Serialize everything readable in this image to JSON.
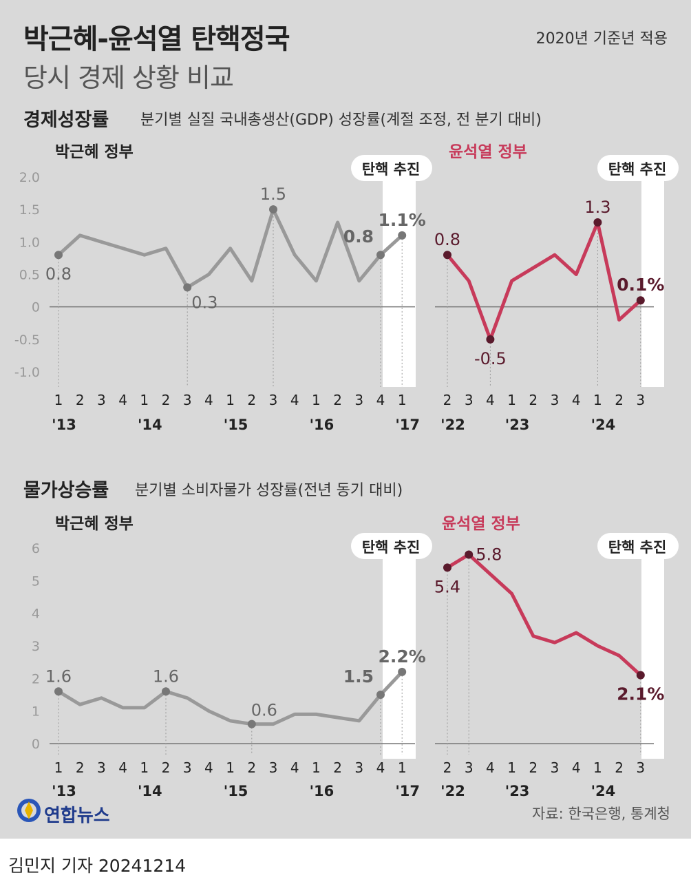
{
  "header": {
    "title_line1": "박근혜-윤석열 탄핵정국",
    "title_line2": "당시 경제 상황 비교",
    "base_year_note": "2020년 기준년 적용"
  },
  "sections": {
    "gdp": {
      "title": "경제성장률",
      "subtitle": "분기별 실질 국내총생산(GDP) 성장률(계절 조정, 전 분기 대비)"
    },
    "cpi": {
      "title": "물가상승률",
      "subtitle": "분기별 소비자물가 성장률(전년 동기 대비)"
    }
  },
  "labels": {
    "park_gov": "박근혜 정부",
    "yoon_gov": "윤석열 정부",
    "impeach": "탄핵 추진"
  },
  "colors": {
    "park": "#999999",
    "yoon": "#c73a5a",
    "yoon_point": "#5a1a2c",
    "park_point": "#777777",
    "highlight_band": "#ffffff"
  },
  "footer": {
    "logo": "연합뉴스",
    "source": "자료: 한국은행, 통계청",
    "byline": "김민지 기자  20241214"
  },
  "chart_data": [
    {
      "type": "line",
      "title": "경제성장률",
      "series": [
        {
          "name": "박근혜 정부",
          "x": [
            "1",
            "2",
            "3",
            "4",
            "1",
            "2",
            "3",
            "4",
            "1",
            "2",
            "3",
            "4",
            "1",
            "2",
            "3",
            "4",
            "1"
          ],
          "year_labels": [
            "'13",
            "'14",
            "'15",
            "'16",
            "'17"
          ],
          "year_start_index": [
            0,
            4,
            8,
            12,
            16
          ],
          "values": [
            0.8,
            1.1,
            1.0,
            0.9,
            0.8,
            0.9,
            0.3,
            0.5,
            0.9,
            0.4,
            1.5,
            0.8,
            0.4,
            1.3,
            0.4,
            0.8,
            1.1
          ],
          "labeled_points": [
            {
              "i": 0,
              "text": "0.8",
              "pos": "below",
              "bold": false
            },
            {
              "i": 6,
              "text": "0.3",
              "pos": "belowright",
              "bold": false
            },
            {
              "i": 10,
              "text": "1.5",
              "pos": "above",
              "bold": false
            },
            {
              "i": 15,
              "text": "0.8",
              "pos": "left",
              "bold": true
            },
            {
              "i": 16,
              "text": "1.1%",
              "pos": "above",
              "bold": true
            }
          ],
          "impeach_index": 15
        },
        {
          "name": "윤석열 정부",
          "x": [
            "2",
            "3",
            "4",
            "1",
            "2",
            "3",
            "4",
            "1",
            "2",
            "3"
          ],
          "year_labels": [
            "'22",
            "'23",
            "'24"
          ],
          "year_start_index": [
            0,
            3,
            7
          ],
          "values": [
            0.8,
            0.4,
            -0.5,
            0.4,
            0.6,
            0.8,
            0.5,
            1.3,
            -0.2,
            0.1
          ],
          "labeled_points": [
            {
              "i": 0,
              "text": "0.8",
              "pos": "above",
              "bold": false
            },
            {
              "i": 2,
              "text": "-0.5",
              "pos": "below",
              "bold": false
            },
            {
              "i": 7,
              "text": "1.3",
              "pos": "above",
              "bold": false
            },
            {
              "i": 9,
              "text": "0.1%",
              "pos": "above",
              "bold": true
            }
          ],
          "impeach_index": 9
        }
      ],
      "ylim": [
        -1.0,
        2.0
      ],
      "yticks": [
        "2.0",
        "1.5",
        "1.0",
        "0.5",
        "0",
        "-0.5",
        "-1.0"
      ],
      "ytick_values": [
        2.0,
        1.5,
        1.0,
        0.5,
        0,
        -0.5,
        -1.0
      ]
    },
    {
      "type": "line",
      "title": "물가상승률",
      "series": [
        {
          "name": "박근혜 정부",
          "x": [
            "1",
            "2",
            "3",
            "4",
            "1",
            "2",
            "3",
            "4",
            "1",
            "2",
            "3",
            "4",
            "1",
            "2",
            "3",
            "4",
            "1"
          ],
          "year_labels": [
            "'13",
            "'14",
            "'15",
            "'16",
            "'17"
          ],
          "year_start_index": [
            0,
            4,
            8,
            12,
            16
          ],
          "values": [
            1.6,
            1.2,
            1.4,
            1.1,
            1.1,
            1.6,
            1.4,
            1.0,
            0.7,
            0.6,
            0.6,
            0.9,
            0.9,
            0.8,
            0.7,
            1.5,
            2.2
          ],
          "labeled_points": [
            {
              "i": 0,
              "text": "1.6",
              "pos": "above",
              "bold": false
            },
            {
              "i": 5,
              "text": "1.6",
              "pos": "above",
              "bold": false
            },
            {
              "i": 9,
              "text": "0.6",
              "pos": "aboveright",
              "bold": false
            },
            {
              "i": 15,
              "text": "1.5",
              "pos": "left",
              "bold": true
            },
            {
              "i": 16,
              "text": "2.2%",
              "pos": "above",
              "bold": true
            }
          ],
          "impeach_index": 15
        },
        {
          "name": "윤석열 정부",
          "x": [
            "2",
            "3",
            "4",
            "1",
            "2",
            "3",
            "4",
            "1",
            "2",
            "3"
          ],
          "year_labels": [
            "'22",
            "'23",
            "'24"
          ],
          "year_start_index": [
            0,
            3,
            7
          ],
          "values": [
            5.4,
            5.8,
            5.2,
            4.6,
            3.3,
            3.1,
            3.4,
            3.0,
            2.7,
            2.1
          ],
          "labeled_points": [
            {
              "i": 0,
              "text": "5.4",
              "pos": "below",
              "bold": false
            },
            {
              "i": 1,
              "text": "5.8",
              "pos": "right",
              "bold": false
            },
            {
              "i": 9,
              "text": "2.1%",
              "pos": "below",
              "bold": true
            }
          ],
          "impeach_index": 9
        }
      ],
      "ylim": [
        0,
        6
      ],
      "yticks": [
        "6",
        "5",
        "4",
        "3",
        "2",
        "1",
        "0"
      ],
      "ytick_values": [
        6,
        5,
        4,
        3,
        2,
        1,
        0
      ]
    }
  ]
}
